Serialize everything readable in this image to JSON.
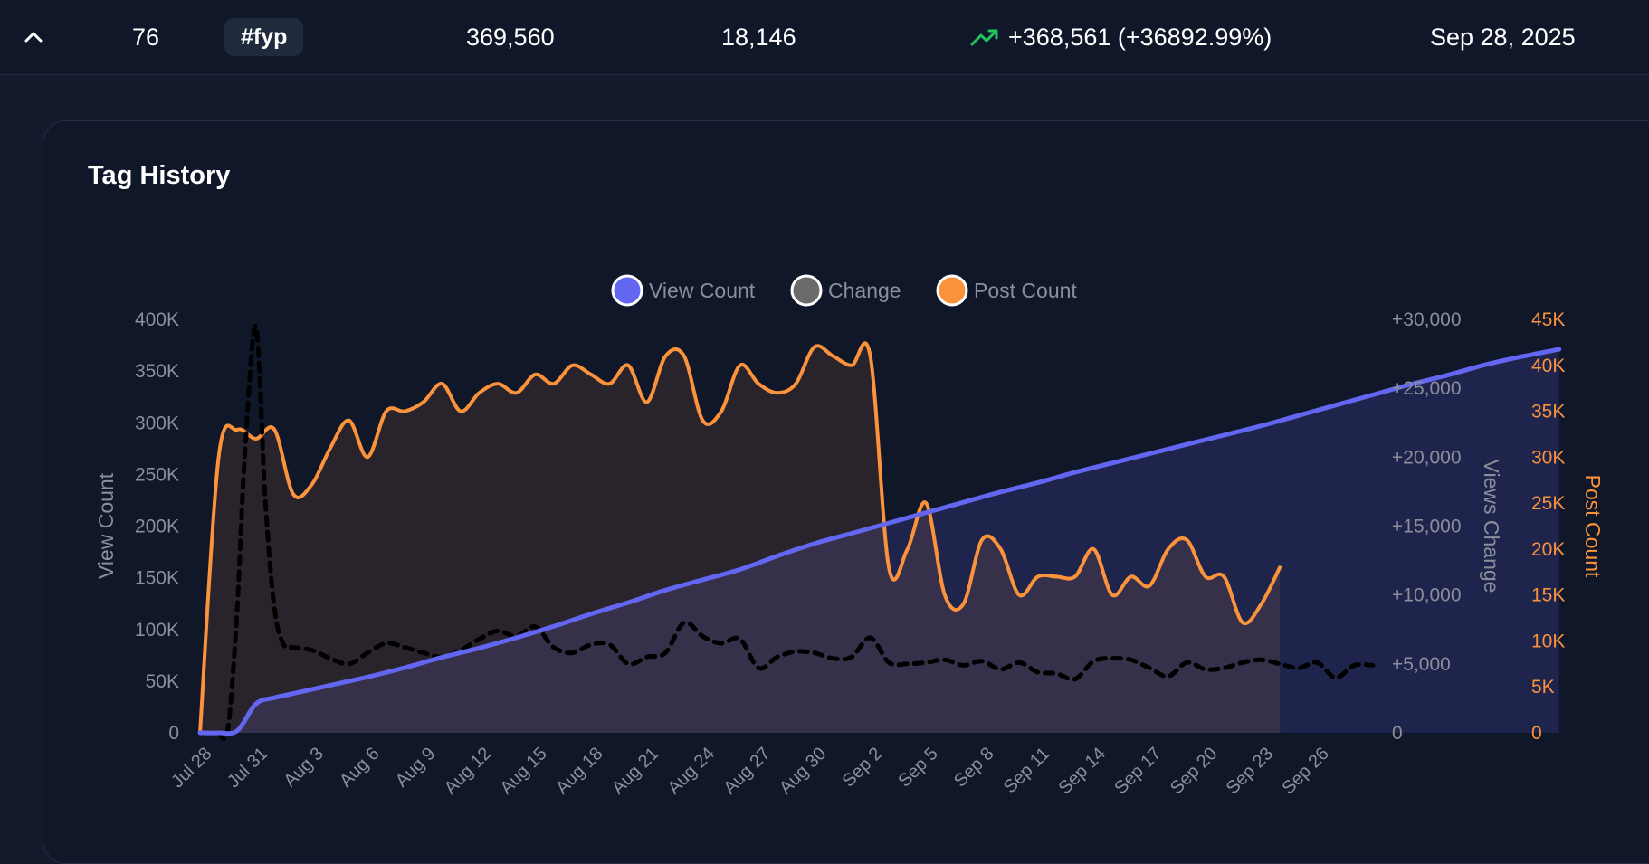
{
  "row": {
    "rank": "76",
    "tag": "#fyp",
    "views": "369,560",
    "posts": "18,146",
    "change": "+368,561 (+36892.99%)",
    "date": "Sep 28, 2025"
  },
  "colors": {
    "view": "#6366f1",
    "change": "#6b6b6b",
    "post": "#fb923c",
    "positive": "#22c55e"
  },
  "card": {
    "title": "Tag History"
  },
  "chart_data": {
    "type": "line",
    "title": "Tag History",
    "legend": [
      "View Count",
      "Change",
      "Post Count"
    ],
    "legend_position": "top",
    "x_labels": [
      "Jul 28",
      "Jul 31",
      "Aug 3",
      "Aug 6",
      "Aug 9",
      "Aug 12",
      "Aug 15",
      "Aug 18",
      "Aug 21",
      "Aug 24",
      "Aug 27",
      "Aug 30",
      "Sep 2",
      "Sep 5",
      "Sep 8",
      "Sep 11",
      "Sep 14",
      "Sep 17",
      "Sep 20",
      "Sep 23",
      "Sep 26"
    ],
    "y_left": {
      "label": "View Count",
      "ticks": [
        "0",
        "50K",
        "100K",
        "150K",
        "200K",
        "250K",
        "300K",
        "350K",
        "400K"
      ],
      "range": [
        0,
        400000
      ]
    },
    "y_right1": {
      "label": "Views Change",
      "ticks": [
        "0",
        "+5,000",
        "+10,000",
        "+15,000",
        "+20,000",
        "+25,000",
        "+30,000"
      ],
      "range": [
        0,
        30000
      ]
    },
    "y_right2": {
      "label": "Post Count",
      "ticks": [
        "0",
        "5K",
        "10K",
        "15K",
        "20K",
        "25K",
        "30K",
        "35K",
        "40K",
        "45K"
      ],
      "range": [
        0,
        45000
      ]
    },
    "days": 64,
    "series": [
      {
        "name": "View Count",
        "axis": "left",
        "points": [
          [
            0,
            0
          ],
          [
            1,
            0
          ],
          [
            2,
            2000
          ],
          [
            3,
            28000
          ],
          [
            4,
            34000
          ],
          [
            5,
            38000
          ],
          [
            7,
            46000
          ],
          [
            9,
            54000
          ],
          [
            11,
            63000
          ],
          [
            13,
            73000
          ],
          [
            15,
            82000
          ],
          [
            17,
            92000
          ],
          [
            19,
            103000
          ],
          [
            21,
            115000
          ],
          [
            23,
            126000
          ],
          [
            25,
            138000
          ],
          [
            27,
            148000
          ],
          [
            29,
            158000
          ],
          [
            31,
            171000
          ],
          [
            33,
            183000
          ],
          [
            35,
            193000
          ],
          [
            37,
            203000
          ],
          [
            39,
            213000
          ],
          [
            41,
            223000
          ],
          [
            43,
            233000
          ],
          [
            45,
            242000
          ],
          [
            47,
            252000
          ],
          [
            49,
            261000
          ],
          [
            51,
            270000
          ],
          [
            53,
            279000
          ],
          [
            55,
            288000
          ],
          [
            57,
            297000
          ],
          [
            59,
            307000
          ],
          [
            61,
            317000
          ],
          [
            63,
            327000
          ],
          [
            65,
            337000
          ],
          [
            67,
            346000
          ],
          [
            69,
            356000
          ],
          [
            71,
            364000
          ],
          [
            73,
            371000
          ]
        ]
      },
      {
        "name": "Change",
        "axis": "right1",
        "points": [
          [
            1,
            0
          ],
          [
            1.5,
            300
          ],
          [
            2,
            9000
          ],
          [
            2.4,
            20000
          ],
          [
            3,
            29500
          ],
          [
            3.5,
            17000
          ],
          [
            4,
            9000
          ],
          [
            4.5,
            6400
          ],
          [
            5,
            6200
          ],
          [
            6,
            6000
          ],
          [
            7,
            5400
          ],
          [
            8,
            5000
          ],
          [
            9,
            5800
          ],
          [
            10,
            6500
          ],
          [
            11,
            6200
          ],
          [
            12,
            5800
          ],
          [
            13,
            5500
          ],
          [
            14,
            6000
          ],
          [
            15,
            6800
          ],
          [
            16,
            7400
          ],
          [
            17,
            7000
          ],
          [
            18,
            7700
          ],
          [
            19,
            6200
          ],
          [
            20,
            5800
          ],
          [
            21,
            6400
          ],
          [
            22,
            6400
          ],
          [
            23,
            5000
          ],
          [
            24,
            5500
          ],
          [
            25,
            5800
          ],
          [
            26,
            8000
          ],
          [
            27,
            7000
          ],
          [
            28,
            6500
          ],
          [
            29,
            6800
          ],
          [
            30,
            4700
          ],
          [
            31,
            5500
          ],
          [
            32,
            5900
          ],
          [
            33,
            5800
          ],
          [
            34,
            5400
          ],
          [
            35,
            5500
          ],
          [
            36,
            6900
          ],
          [
            37,
            5100
          ],
          [
            38,
            5000
          ],
          [
            39,
            5100
          ],
          [
            40,
            5300
          ],
          [
            41,
            4900
          ],
          [
            42,
            5200
          ],
          [
            43,
            4600
          ],
          [
            44,
            5100
          ],
          [
            45,
            4400
          ],
          [
            46,
            4300
          ],
          [
            47,
            3900
          ],
          [
            48,
            5200
          ],
          [
            49,
            5400
          ],
          [
            50,
            5300
          ],
          [
            51,
            4700
          ],
          [
            52,
            4100
          ],
          [
            53,
            5100
          ],
          [
            54,
            4600
          ],
          [
            55,
            4700
          ],
          [
            56,
            5100
          ],
          [
            57,
            5300
          ],
          [
            58,
            5000
          ],
          [
            59,
            4700
          ],
          [
            60,
            5100
          ],
          [
            61,
            4000
          ],
          [
            62,
            4900
          ],
          [
            63,
            4900
          ]
        ]
      },
      {
        "name": "Post Count",
        "axis": "right2",
        "points": [
          [
            0,
            0
          ],
          [
            1,
            30000
          ],
          [
            2,
            33000
          ],
          [
            3,
            32000
          ],
          [
            4,
            33000
          ],
          [
            5,
            26000
          ],
          [
            6,
            27000
          ],
          [
            7,
            31000
          ],
          [
            8,
            34000
          ],
          [
            9,
            30000
          ],
          [
            10,
            35000
          ],
          [
            11,
            35000
          ],
          [
            12,
            36000
          ],
          [
            13,
            38000
          ],
          [
            14,
            35000
          ],
          [
            15,
            37000
          ],
          [
            16,
            38000
          ],
          [
            17,
            37000
          ],
          [
            18,
            39000
          ],
          [
            19,
            38000
          ],
          [
            20,
            40000
          ],
          [
            21,
            39000
          ],
          [
            22,
            38000
          ],
          [
            23,
            40000
          ],
          [
            24,
            36000
          ],
          [
            25,
            41000
          ],
          [
            26,
            41000
          ],
          [
            27,
            34000
          ],
          [
            28,
            35000
          ],
          [
            29,
            40000
          ],
          [
            30,
            38000
          ],
          [
            31,
            37000
          ],
          [
            32,
            38000
          ],
          [
            33,
            42000
          ],
          [
            34,
            41000
          ],
          [
            35,
            40000
          ],
          [
            36,
            41000
          ],
          [
            37,
            18000
          ],
          [
            38,
            20000
          ],
          [
            39,
            25000
          ],
          [
            40,
            15000
          ],
          [
            41,
            14000
          ],
          [
            42,
            21000
          ],
          [
            43,
            20000
          ],
          [
            44,
            15000
          ],
          [
            45,
            17000
          ],
          [
            46,
            17000
          ],
          [
            47,
            17000
          ],
          [
            48,
            20000
          ],
          [
            49,
            15000
          ],
          [
            50,
            17000
          ],
          [
            51,
            16000
          ],
          [
            52,
            20000
          ],
          [
            53,
            21000
          ],
          [
            54,
            17000
          ],
          [
            55,
            17000
          ],
          [
            56,
            12000
          ],
          [
            57,
            14000
          ],
          [
            58,
            18000
          ]
        ]
      }
    ]
  }
}
